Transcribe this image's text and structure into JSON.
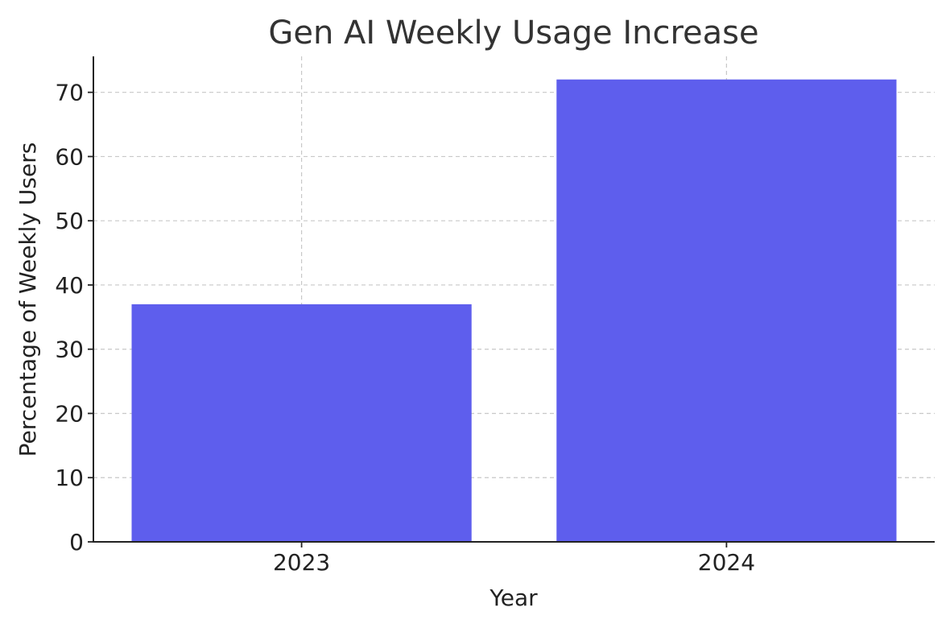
{
  "chart_data": {
    "type": "bar",
    "title": "Gen AI Weekly Usage Increase",
    "xlabel": "Year",
    "ylabel": "Percentage of Weekly Users",
    "categories": [
      "2023",
      "2024"
    ],
    "values": [
      37,
      72
    ],
    "ylim": [
      0,
      75.6
    ],
    "yticks": [
      0,
      10,
      20,
      30,
      40,
      50,
      60,
      70
    ],
    "grid": true,
    "bar_color": "#5e5eed"
  }
}
